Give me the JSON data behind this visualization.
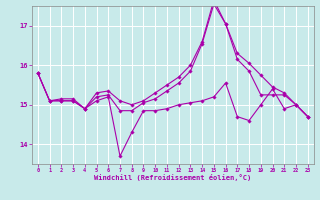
{
  "xlabel": "Windchill (Refroidissement éolien,°C)",
  "background_color": "#c8eaea",
  "grid_color": "#ffffff",
  "line_color": "#aa00aa",
  "xlim": [
    -0.5,
    23.5
  ],
  "ylim": [
    13.5,
    17.5
  ],
  "yticks": [
    14,
    15,
    16,
    17
  ],
  "xticks": [
    0,
    1,
    2,
    3,
    4,
    5,
    6,
    7,
    8,
    9,
    10,
    11,
    12,
    13,
    14,
    15,
    16,
    17,
    18,
    19,
    20,
    21,
    22,
    23
  ],
  "series": [
    [
      15.8,
      15.1,
      15.1,
      15.1,
      14.9,
      15.1,
      15.2,
      13.7,
      14.3,
      14.85,
      14.85,
      14.9,
      15.0,
      15.05,
      15.1,
      15.2,
      15.55,
      14.7,
      14.6,
      15.0,
      15.4,
      14.9,
      15.0,
      14.7
    ],
    [
      15.8,
      15.1,
      15.1,
      15.1,
      14.9,
      15.2,
      15.25,
      14.85,
      14.85,
      15.05,
      15.15,
      15.35,
      15.55,
      15.85,
      16.55,
      17.55,
      17.05,
      16.15,
      15.85,
      15.25,
      15.25,
      15.25,
      15.0,
      14.7
    ],
    [
      15.8,
      15.1,
      15.15,
      15.15,
      14.9,
      15.3,
      15.35,
      15.1,
      15.0,
      15.1,
      15.3,
      15.5,
      15.7,
      16.0,
      16.6,
      17.65,
      17.05,
      16.3,
      16.05,
      15.75,
      15.45,
      15.3,
      15.0,
      14.7
    ]
  ]
}
